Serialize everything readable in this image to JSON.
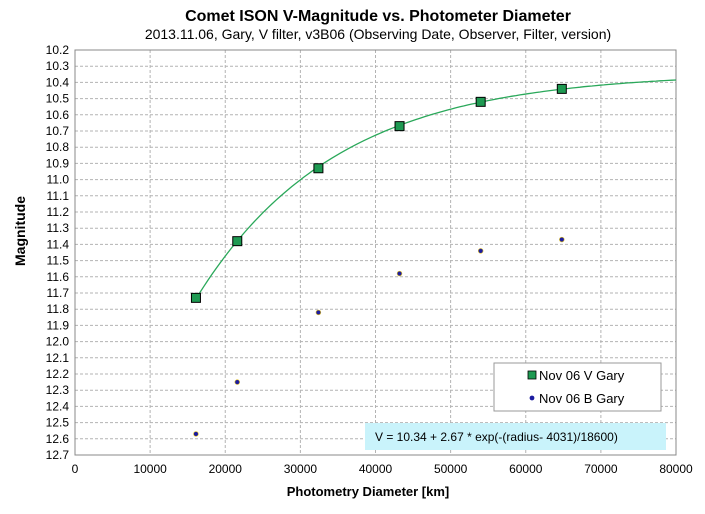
{
  "chart_data": {
    "type": "scatter",
    "title": "Comet ISON V-Magnitude  vs. Photometer Diameter",
    "subtitle": "2013.11.06,  Gary,  V filter,  v3B06 (Observing Date, Observer, Filter, version)",
    "xlabel": "Photometry Diameter  [km]",
    "ylabel": "Magnitude",
    "xlim": [
      0,
      80000
    ],
    "ylim": [
      10.2,
      12.7
    ],
    "y_inverted": true,
    "grid": true,
    "x_ticks": [
      "0",
      "10000",
      "20000",
      "30000",
      "40000",
      "50000",
      "60000",
      "70000",
      "80000"
    ],
    "y_ticks": [
      "10.2",
      "10.3",
      "10.4",
      "10.5",
      "10.6",
      "10.7",
      "10.8",
      "10.9",
      "11.0",
      "11.1",
      "11.2",
      "11.3",
      "11.4",
      "11.5",
      "11.6",
      "11.7",
      "11.8",
      "11.9",
      "12.0",
      "12.1",
      "12.2",
      "12.3",
      "12.4",
      "12.5",
      "12.6",
      "12.7"
    ],
    "series": [
      {
        "name": "Nov 06 V Gary",
        "marker": "square",
        "color": "#1e9a52",
        "x": [
          16100,
          21600,
          32400,
          43200,
          54000,
          64800
        ],
        "y": [
          11.73,
          11.38,
          10.93,
          10.67,
          10.52,
          10.44
        ]
      },
      {
        "name": "Nov 06 B Gary",
        "marker": "dot",
        "color": "#1c1ca0",
        "x": [
          16100,
          21600,
          32400,
          43200,
          54000,
          64800
        ],
        "y": [
          12.57,
          12.25,
          11.82,
          11.58,
          11.44,
          11.37
        ]
      }
    ],
    "fit": {
      "color": "#2aa85a",
      "equation": "V = 10.34 + 2.67 * exp(-(radius- 4031)/18600)",
      "a": 10.34,
      "b": 2.67,
      "x0": 4031,
      "tau": 18600,
      "x_start": 16100,
      "x_end": 80000
    },
    "legend": {
      "position": "bottom-right"
    }
  }
}
